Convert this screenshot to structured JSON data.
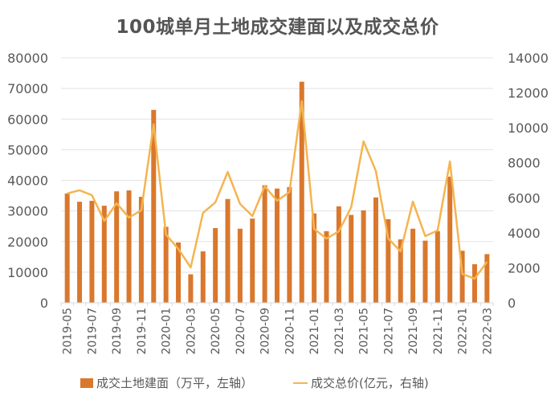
{
  "chart_data": {
    "type": "bar+line",
    "title": "100城单月土地成交建面以及成交总价",
    "categories": [
      "2019-05",
      "2019-06",
      "2019-07",
      "2019-08",
      "2019-09",
      "2019-10",
      "2019-11",
      "2019-12",
      "2020-01",
      "2020-02",
      "2020-03",
      "2020-04",
      "2020-05",
      "2020-06",
      "2020-07",
      "2020-08",
      "2020-09",
      "2020-10",
      "2020-11",
      "2020-12",
      "2021-01",
      "2021-02",
      "2021-03",
      "2021-04",
      "2021-05",
      "2021-06",
      "2021-07",
      "2021-08",
      "2021-09",
      "2021-10",
      "2021-11",
      "2021-12",
      "2022-01",
      "2022-02",
      "2022-03"
    ],
    "tick_labels": [
      "2019-05",
      "2019-07",
      "2019-09",
      "2019-11",
      "2020-01",
      "2020-03",
      "2020-05",
      "2020-07",
      "2020-09",
      "2020-11",
      "2021-01",
      "2021-03",
      "2021-05",
      "2021-07",
      "2021-09",
      "2021-11",
      "2022-01",
      "2022-03"
    ],
    "series": [
      {
        "name": "成交土地建面（万平，左轴）",
        "type": "bar",
        "axis": "left",
        "color": "#D9782D",
        "values": [
          35700,
          33000,
          33300,
          31700,
          36400,
          36700,
          34600,
          63000,
          24800,
          19700,
          9300,
          16800,
          24400,
          33900,
          24200,
          27500,
          38400,
          37300,
          37800,
          72200,
          29200,
          23400,
          31500,
          28700,
          30200,
          34400,
          27300,
          20700,
          24200,
          20300,
          23400,
          41200,
          17000,
          12600,
          15900
        ]
      },
      {
        "name": "成交总价(亿元，右轴)",
        "type": "line",
        "axis": "right",
        "color": "#F5B450",
        "values": [
          6250,
          6430,
          6150,
          4680,
          5690,
          4870,
          5280,
          10200,
          3900,
          3080,
          2020,
          5140,
          5740,
          7480,
          5650,
          4960,
          6660,
          5830,
          6330,
          11520,
          4220,
          3670,
          4090,
          5460,
          9230,
          7530,
          3670,
          2940,
          5780,
          3810,
          4130,
          8080,
          1650,
          1380,
          2340
        ]
      }
    ],
    "left_axis": {
      "ylim": [
        0,
        80000
      ],
      "ticks": [
        "0",
        "10000",
        "20000",
        "30000",
        "40000",
        "50000",
        "60000",
        "70000",
        "80000"
      ]
    },
    "right_axis": {
      "ylim": [
        0,
        14000
      ],
      "ticks": [
        "0",
        "2000",
        "4000",
        "6000",
        "8000",
        "10000",
        "12000",
        "14000"
      ]
    },
    "xlabel": "",
    "ylabel": "",
    "grid": true,
    "legend_position": "bottom"
  },
  "legend": {
    "bar_label": "成交土地建面（万平，左轴）",
    "line_label": "成交总价(亿元，右轴)"
  }
}
